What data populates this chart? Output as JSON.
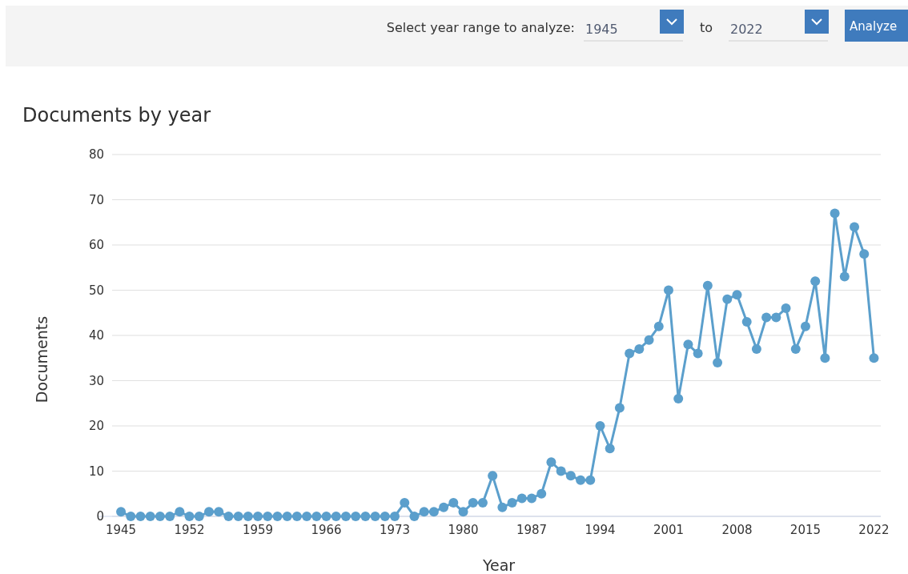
{
  "chart_data": {
    "type": "line",
    "title": "Documents by year",
    "xlabel": "Year",
    "ylabel": "Documents",
    "annotations": [
      "Select year range to analyze:",
      "1945",
      "to",
      "2022",
      "Analyze"
    ],
    "x": [
      1945,
      1946,
      1947,
      1948,
      1949,
      1950,
      1951,
      1952,
      1953,
      1954,
      1955,
      1956,
      1957,
      1958,
      1959,
      1960,
      1961,
      1962,
      1963,
      1964,
      1965,
      1966,
      1967,
      1968,
      1969,
      1970,
      1971,
      1972,
      1973,
      1974,
      1975,
      1976,
      1977,
      1978,
      1979,
      1980,
      1981,
      1982,
      1983,
      1984,
      1985,
      1986,
      1987,
      1988,
      1989,
      1990,
      1991,
      1992,
      1993,
      1994,
      1995,
      1996,
      1997,
      1998,
      1999,
      2000,
      2001,
      2002,
      2003,
      2004,
      2005,
      2006,
      2007,
      2008,
      2009,
      2010,
      2011,
      2012,
      2013,
      2014,
      2015,
      2016,
      2017,
      2018,
      2019,
      2020,
      2021,
      2022
    ],
    "series": [
      {
        "color": "#5b9fcc",
        "values": [
          1,
          0,
          0,
          0,
          0,
          0,
          1,
          0,
          0,
          1,
          1,
          0,
          0,
          0,
          0,
          0,
          0,
          0,
          0,
          0,
          0,
          0,
          0,
          0,
          0,
          0,
          0,
          0,
          0,
          3,
          0,
          1,
          1,
          2,
          3,
          1,
          3,
          3,
          9,
          2,
          3,
          4,
          4,
          5,
          12,
          10,
          9,
          8,
          8,
          20,
          15,
          24,
          36,
          37,
          39,
          42,
          50,
          26,
          38,
          36,
          51,
          34,
          48,
          49,
          43,
          37,
          44,
          44,
          46,
          37,
          42,
          52,
          35,
          67,
          53,
          64,
          58,
          35
        ]
      }
    ],
    "xlim": [
      1942.7,
      2022.7
    ],
    "xticks": [
      1945,
      1952,
      1959,
      1966,
      1973,
      1980,
      1987,
      1994,
      2001,
      2008,
      2015,
      2022
    ],
    "ylim": [
      0,
      80
    ],
    "yticks": [
      0,
      10,
      20,
      30,
      40,
      50,
      60,
      70,
      80
    ],
    "grid": "y",
    "marker": "circle",
    "line_style": "solid"
  }
}
